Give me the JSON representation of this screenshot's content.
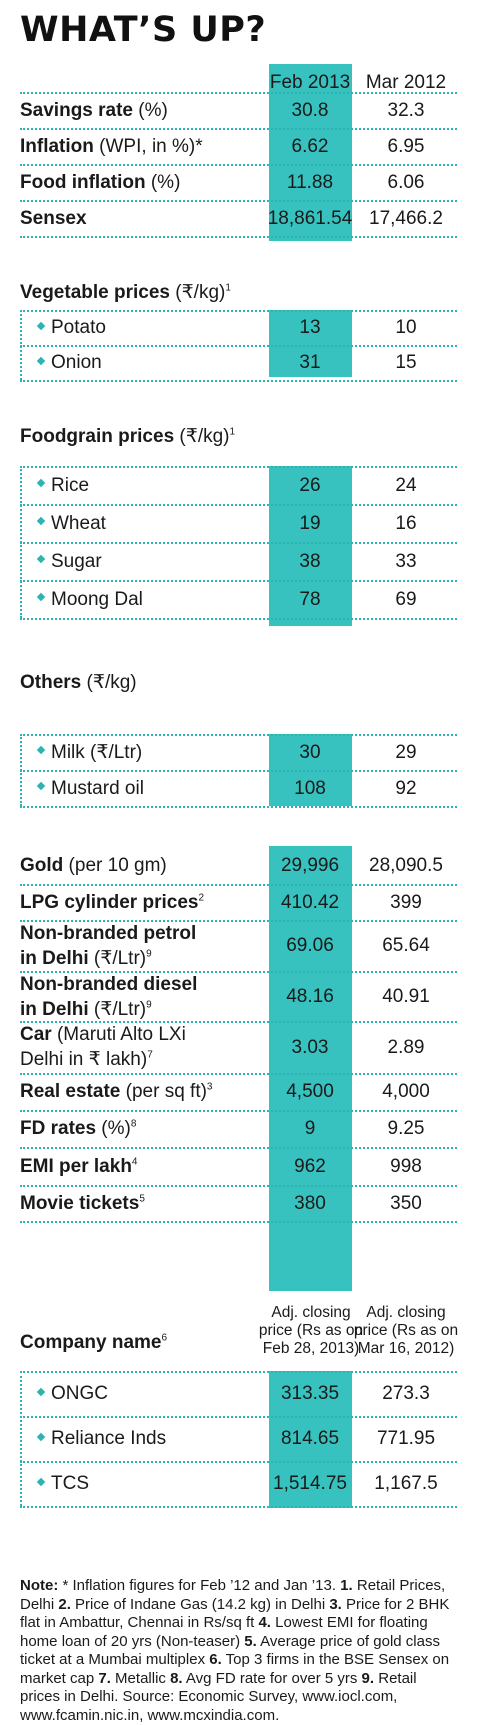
{
  "title": "WHAT’S UP?",
  "columns": {
    "current": "Feb 2013",
    "previous": "Mar 2012"
  },
  "colors": {
    "accent": "#37c1bf",
    "bullet": "#2bb4b1"
  },
  "top_rows": [
    {
      "label": "Savings rate",
      "unit": " (%)",
      "sup": "",
      "current": "30.8",
      "previous": "32.3"
    },
    {
      "label": "Inflation",
      "unit": " (WPI, in %)*",
      "sup": "",
      "current": "6.62",
      "previous": "6.95"
    },
    {
      "label": "Food inflation",
      "unit": " (%)",
      "sup": "",
      "current": "11.88",
      "previous": "6.06"
    },
    {
      "label": "Sensex",
      "unit": "",
      "sup": "",
      "current": "18,861.54",
      "previous": "17,466.2"
    }
  ],
  "vegetable": {
    "heading": "Vegetable prices",
    "unit": " (₹/kg)",
    "sup": "1",
    "rows": [
      {
        "label": "Potato",
        "current": "13",
        "previous": "10"
      },
      {
        "label": "Onion",
        "current": "31",
        "previous": "15"
      }
    ]
  },
  "foodgrain": {
    "heading": "Foodgrain prices",
    "unit": " (₹/kg)",
    "sup": "1",
    "rows": [
      {
        "label": "Rice",
        "current": "26",
        "previous": "24"
      },
      {
        "label": "Wheat",
        "current": "19",
        "previous": "16"
      },
      {
        "label": "Sugar",
        "current": "38",
        "previous": "33"
      },
      {
        "label": "Moong Dal",
        "current": "78",
        "previous": "69"
      }
    ]
  },
  "others": {
    "heading": "Others",
    "unit": " (₹/kg)",
    "sup": "",
    "rows": [
      {
        "label": "Milk (₹/Ltr)",
        "current": "30",
        "previous": "29"
      },
      {
        "label": "Mustard oil",
        "current": "108",
        "previous": "92"
      }
    ]
  },
  "misc_rows": [
    {
      "l1b": "Gold",
      "l1": " (per 10 gm)",
      "sup": "",
      "l2b": "",
      "l2": "",
      "current": "29,996",
      "previous": "28,090.5"
    },
    {
      "l1b": "LPG cylinder prices",
      "l1": "",
      "sup": "2",
      "l2b": "",
      "l2": "",
      "current": "410.42",
      "previous": "399"
    },
    {
      "l1b": "Non-branded petrol",
      "l1": "",
      "sup": "",
      "l2b": "in Delhi",
      "l2": " (₹/Ltr)",
      "sup2": "9",
      "current": "69.06",
      "previous": "65.64"
    },
    {
      "l1b": "Non-branded diesel",
      "l1": "",
      "sup": "",
      "l2b": "in Delhi",
      "l2": " (₹/Ltr)",
      "sup2": "9",
      "current": "48.16",
      "previous": "40.91"
    },
    {
      "l1b": "Car",
      "l1": " (Maruti Alto LXi",
      "sup": "",
      "l2b": "",
      "l2": "Delhi in ₹ lakh)",
      "sup2": "7",
      "current": "3.03",
      "previous": "2.89"
    },
    {
      "l1b": "Real estate",
      "l1": " (per sq ft)",
      "sup": "3",
      "l2b": "",
      "l2": "",
      "current": "4,500",
      "previous": "4,000"
    },
    {
      "l1b": "FD rates",
      "l1": " (%)",
      "sup": "8",
      "l2b": "",
      "l2": "",
      "current": "9",
      "previous": "9.25"
    },
    {
      "l1b": "EMI per lakh",
      "l1": "",
      "sup": "4",
      "l2b": "",
      "l2": "",
      "current": "962",
      "previous": "998"
    },
    {
      "l1b": "Movie tickets",
      "l1": "",
      "sup": "5",
      "l2b": "",
      "l2": "",
      "current": "380",
      "previous": "350"
    }
  ],
  "company": {
    "heading": "Company name",
    "sup": "6",
    "col1_header": [
      "Adj. closing",
      "price (Rs as on",
      "Feb 28, 2013)"
    ],
    "col2_header": [
      "Adj. closing",
      "price (Rs as on",
      "Mar 16, 2012)"
    ],
    "rows": [
      {
        "label": "ONGC",
        "current": "313.35",
        "previous": "273.3"
      },
      {
        "label": "Reliance Inds",
        "current": "814.65",
        "previous": "771.95"
      },
      {
        "label": "TCS",
        "current": "1,514.75",
        "previous": "1,167.5"
      }
    ]
  },
  "note": {
    "lead": "Note:",
    "intro": " * Inflation figures for Feb ’12 and Jan ’13.",
    "items": [
      {
        "n": "1.",
        "t": " Retail Prices, Delhi "
      },
      {
        "n": "2.",
        "t": " Price of Indane Gas (14.2 kg) in Delhi "
      },
      {
        "n": "3.",
        "t": " Price for 2 BHK flat in Ambattur, Chennai in Rs/sq ft "
      },
      {
        "n": "4.",
        "t": " Lowest EMI for floating home loan of 20 yrs (Non-teaser) "
      },
      {
        "n": "5.",
        "t": " Average price of gold class ticket at a Mumbai multiplex "
      },
      {
        "n": "6.",
        "t": " Top 3 firms in the BSE Sensex on market cap "
      },
      {
        "n": "7.",
        "t": " Metallic "
      },
      {
        "n": "8.",
        "t": " Avg FD rate for over 5 yrs "
      },
      {
        "n": "9.",
        "t": " Retail prices in Delhi. Source: Economic Survey, www.iocl.com, www.fcamin.nic.in, www.mcxindia.com."
      }
    ]
  }
}
